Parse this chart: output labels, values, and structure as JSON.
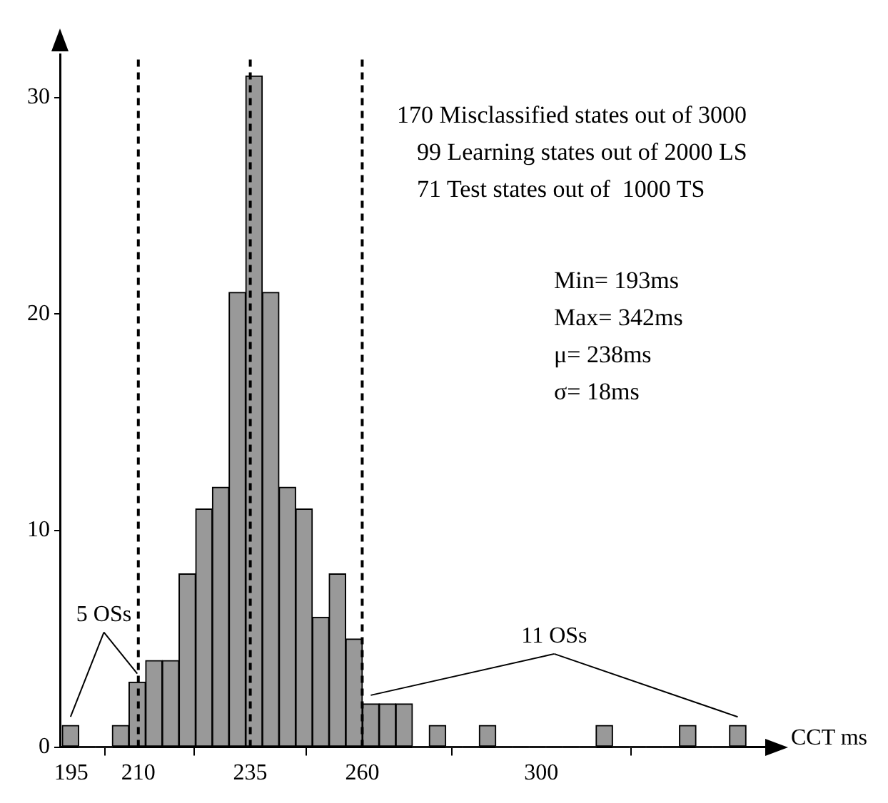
{
  "chart_data": {
    "type": "histogram",
    "xlabel": "CCT ms",
    "bins": [
      193,
      196.725,
      200.45,
      204.175,
      207.9,
      211.625,
      215.35,
      219.075,
      222.8,
      226.525,
      230.25,
      233.975,
      237.7,
      241.425,
      245.15,
      248.875,
      252.6,
      256.325,
      260.05,
      263.775,
      267.5,
      271.225,
      274.95,
      278.675,
      282.4,
      286.125,
      289.85,
      293.575,
      297.3,
      301.025,
      304.75,
      308.475,
      312.2,
      315.925,
      319.65,
      323.375,
      327.1,
      330.825,
      334.55,
      338.275,
      342,
      345.725
    ],
    "values": [
      1,
      0,
      0,
      1,
      3,
      4,
      4,
      8,
      11,
      12,
      21,
      31,
      21,
      12,
      11,
      6,
      8,
      5,
      2,
      2,
      2,
      0,
      1,
      0,
      0,
      1,
      0,
      0,
      0,
      0,
      0,
      0,
      1,
      0,
      0,
      0,
      0,
      1,
      0,
      0,
      1
    ],
    "color": "#999999",
    "xlim": [
      192.5,
      350
    ],
    "xticks": [
      195,
      210,
      235,
      260,
      300
    ],
    "ylim": [
      0,
      32
    ],
    "yticks": [
      0,
      10,
      20,
      30
    ],
    "grid": false,
    "legend": false,
    "ref_lines": [
      {
        "axis": "x",
        "value": 210,
        "color": "#000000",
        "line_style": "dashed"
      },
      {
        "axis": "x",
        "value": 235,
        "color": "#000000",
        "line_style": "dashed"
      },
      {
        "axis": "x",
        "value": 260,
        "color": "#000000",
        "line_style": "dashed"
      }
    ],
    "annotations": [
      "170 Misclassified states out of 3000",
      "99 Learning states out of 2000 LS",
      "71 Test states out of  1000 TS",
      "Min= 193ms",
      "Max= 342ms",
      "μ= 238ms",
      "σ= 18ms",
      {
        "text": "5 OSs",
        "x": 194.8625,
        "y": 1
      },
      {
        "text": "11 OSs",
        "x": 261.9125,
        "y": 2
      }
    ]
  }
}
